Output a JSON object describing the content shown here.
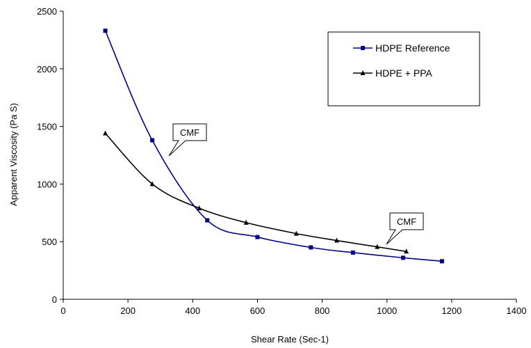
{
  "chart_data": {
    "type": "line",
    "title": "",
    "xlabel": "Shear Rate (Sec-1)",
    "ylabel": "Apparent Viscosity (Pa S)",
    "xlim": [
      0,
      1400
    ],
    "ylim": [
      0,
      2500
    ],
    "x_ticks": [
      0,
      200,
      400,
      600,
      800,
      1000,
      1200,
      1400
    ],
    "y_ticks": [
      0,
      500,
      1000,
      1500,
      2000,
      2500
    ],
    "grid": false,
    "legend_position": "top-right",
    "series": [
      {
        "name": "HDPE Reference",
        "color": "#00008b",
        "marker": "square",
        "smooth": true,
        "points": [
          {
            "x": 130,
            "y": 2330
          },
          {
            "x": 275,
            "y": 1380
          },
          {
            "x": 445,
            "y": 685
          },
          {
            "x": 600,
            "y": 540
          },
          {
            "x": 765,
            "y": 450
          },
          {
            "x": 895,
            "y": 405
          },
          {
            "x": 1050,
            "y": 360
          },
          {
            "x": 1170,
            "y": 330
          }
        ]
      },
      {
        "name": "HDPE + PPA",
        "color": "#000000",
        "marker": "triangle",
        "smooth": true,
        "points": [
          {
            "x": 130,
            "y": 1440
          },
          {
            "x": 275,
            "y": 1000
          },
          {
            "x": 420,
            "y": 790
          },
          {
            "x": 565,
            "y": 665
          },
          {
            "x": 720,
            "y": 570
          },
          {
            "x": 845,
            "y": 510
          },
          {
            "x": 970,
            "y": 455
          },
          {
            "x": 1060,
            "y": 415
          }
        ]
      }
    ],
    "annotations": [
      {
        "text": "CMF",
        "x": 320,
        "y": 1420
      },
      {
        "text": "CMF",
        "x": 1065,
        "y": 620
      }
    ]
  }
}
